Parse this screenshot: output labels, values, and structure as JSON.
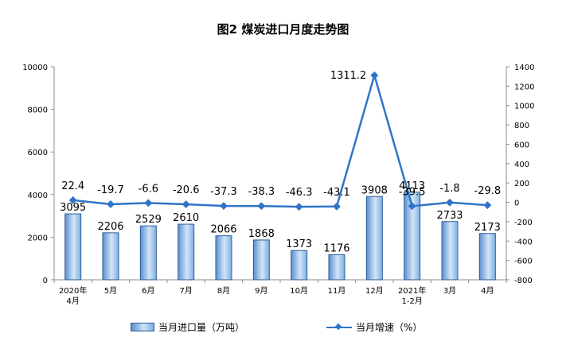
{
  "chart_data": {
    "type": "bar+line",
    "title": "图2 煤炭进口月度走势图",
    "categories": [
      [
        "2020年",
        "4月"
      ],
      [
        "5月"
      ],
      [
        "6月"
      ],
      [
        "7月"
      ],
      [
        "8月"
      ],
      [
        "9月"
      ],
      [
        "10月"
      ],
      [
        "11月"
      ],
      [
        "12月"
      ],
      [
        "2021年",
        "1-2月"
      ],
      [
        "3月"
      ],
      [
        "4月"
      ]
    ],
    "series": [
      {
        "name": "当月进口量（万吨）",
        "type": "bar",
        "axis": "left",
        "values": [
          3095,
          2206,
          2529,
          2610,
          2066,
          1868,
          1373,
          1176,
          3908,
          4113,
          2733,
          2173
        ],
        "labels": [
          "3095",
          "2206",
          "2529",
          "2610",
          "2066",
          "1868",
          "1373",
          "1176",
          "3908",
          "4113",
          "2733",
          "2173"
        ],
        "color": "#5b9bd5"
      },
      {
        "name": "当月增速（%）",
        "type": "line",
        "axis": "right",
        "values": [
          22.4,
          -19.7,
          -6.6,
          -20.6,
          -37.3,
          -38.3,
          -46.3,
          -43.1,
          1311.2,
          -39.5,
          -1.8,
          -29.8
        ],
        "labels": [
          "22.4",
          "-19.7",
          "-6.6",
          "-20.6",
          "-37.3",
          "-38.3",
          "-46.3",
          "-43.1",
          "1311.2",
          "-39.5",
          "-1.8",
          "-29.8"
        ],
        "color": "#2e75c8"
      }
    ],
    "y_left": {
      "range": [
        0,
        10000
      ],
      "ticks": [
        "0",
        "2000",
        "4000",
        "6000",
        "8000",
        "10000"
      ]
    },
    "y_right": {
      "range": [
        -800,
        1400
      ],
      "ticks": [
        "-800",
        "-600",
        "-400",
        "-200",
        "0",
        "200",
        "400",
        "600",
        "800",
        "1000",
        "1200",
        "1400"
      ]
    },
    "legend_position": "bottom",
    "grid": false
  }
}
